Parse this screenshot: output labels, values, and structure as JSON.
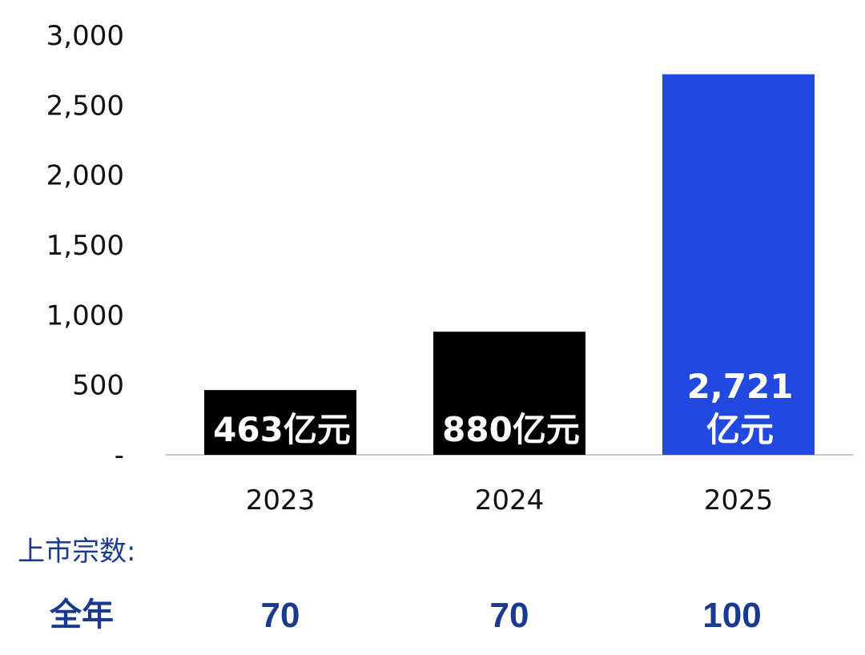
{
  "chart_data": {
    "type": "bar",
    "categories": [
      "2023",
      "2024",
      "2025"
    ],
    "values": [
      463,
      880,
      2721
    ],
    "bar_labels": [
      [
        "463亿元"
      ],
      [
        "880亿元"
      ],
      [
        "2,721",
        "亿元"
      ]
    ],
    "bar_colors": [
      "#000000",
      "#000000",
      "#2149e0"
    ],
    "yticks": [
      "-",
      "500",
      "1,000",
      "1,500",
      "2,000",
      "2,500",
      "3,000"
    ],
    "ytick_values": [
      0,
      500,
      1000,
      1500,
      2000,
      2500,
      3000
    ],
    "ylim": [
      0,
      3000
    ],
    "grid": false
  },
  "listing": {
    "title": "上市宗数:",
    "row_label": "全年",
    "values": [
      "70",
      "70",
      "100"
    ]
  },
  "colors": {
    "accent_blue": "#2149e0",
    "text_navy": "#1a3a8f",
    "axis_line": "#cccccc"
  }
}
